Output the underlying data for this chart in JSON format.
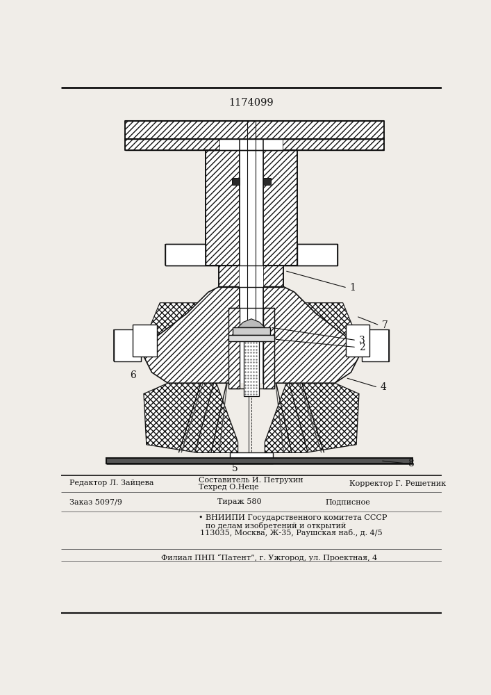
{
  "patent_number": "1174099",
  "bg_color": "#f0ede8",
  "line_color": "#111111",
  "footer": {
    "row1_left": "Редактор Л. Зайцева",
    "row1_mid1": "Составитель И. Петрухин",
    "row1_mid2": "Техред О.Неце",
    "row1_right": "Корректор Г. Решетник",
    "row2_left": "Заказ 5097/9",
    "row2_mid": "Тираж 580",
    "row2_right": "Подписное",
    "row3_1": "• ВНИИПИ Государственного комитета СССР",
    "row3_2": "по делам изобретений и открытий",
    "row3_3": "113035, Москва, Ж-35, Раушская наб., д. 4/5",
    "row4": "Филиал ПНП “Патент”, г. Ужгород, ул. Проектная, 4"
  }
}
